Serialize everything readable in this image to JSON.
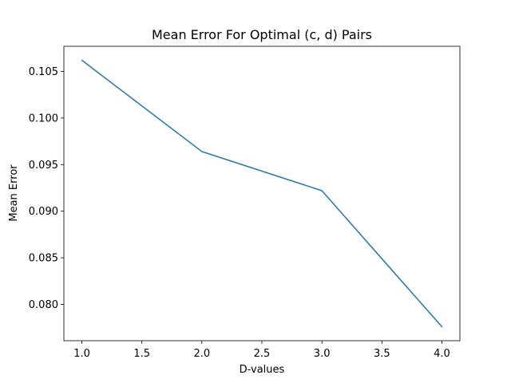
{
  "chart_data": {
    "type": "line",
    "title": "Mean Error For Optimal (c, d) Pairs",
    "xlabel": "D-values",
    "ylabel": "Mean Error",
    "xlim": [
      0.85,
      4.15
    ],
    "ylim": [
      0.0761,
      0.1077
    ],
    "xticks": [
      "1.0",
      "1.5",
      "2.0",
      "2.5",
      "3.0",
      "3.5",
      "4.0"
    ],
    "yticks": [
      "0.080",
      "0.085",
      "0.090",
      "0.095",
      "0.100",
      "0.105"
    ],
    "grid": false,
    "series": [
      {
        "x": [
          1.0,
          2.0,
          3.0,
          4.0
        ],
        "y": [
          0.1062,
          0.0964,
          0.0922,
          0.0776
        ],
        "color": "#1f77b4"
      }
    ]
  }
}
